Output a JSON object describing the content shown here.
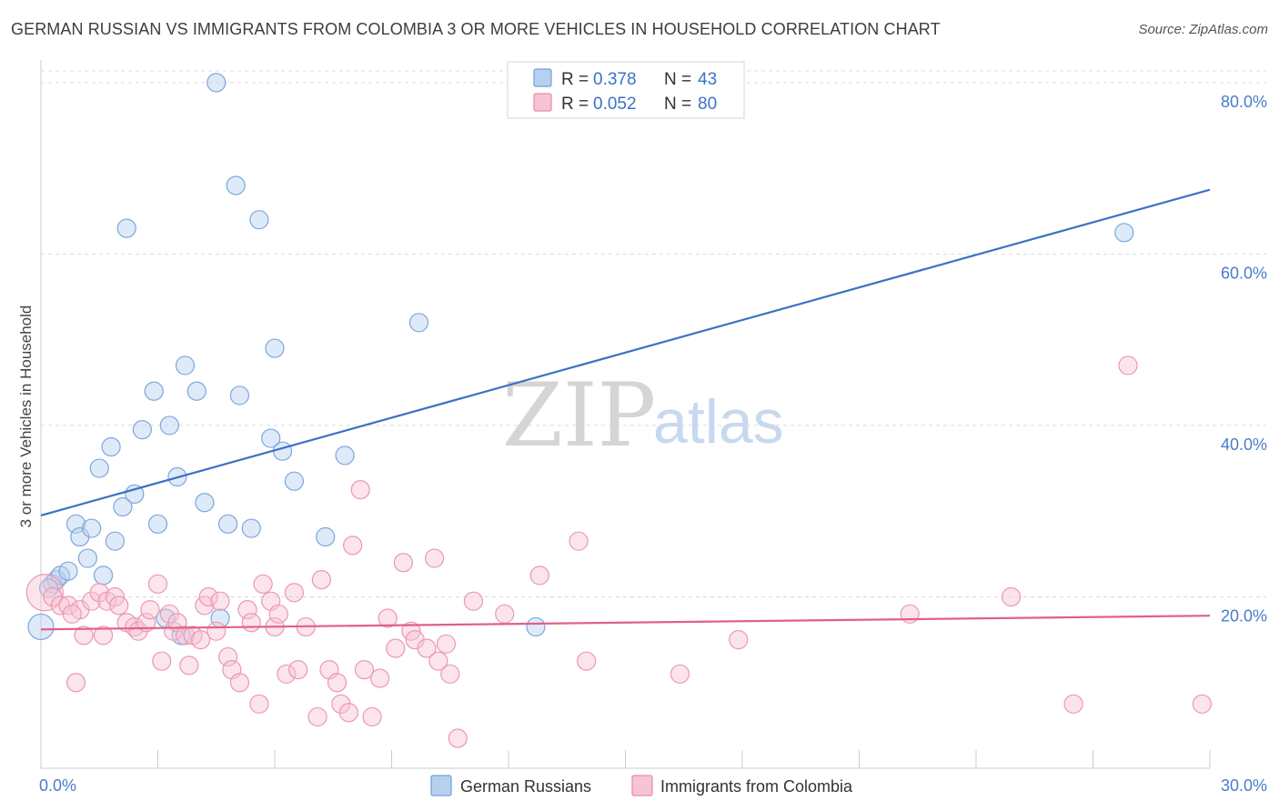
{
  "header": {
    "title": "GERMAN RUSSIAN VS IMMIGRANTS FROM COLOMBIA 3 OR MORE VEHICLES IN HOUSEHOLD CORRELATION CHART",
    "source": "Source: ZipAtlas.com"
  },
  "watermark": {
    "zip": "ZIP",
    "atlas": "atlas"
  },
  "colors": {
    "blue": "#6fa0dc",
    "blue_fill": "#b8d0f0",
    "blue_line": "#3a72c4",
    "pink": "#e88aa8",
    "pink_fill": "#f6c4d4",
    "pink_line": "#e0608a",
    "grid": "#d9d9d9",
    "axis_text": "#4a7cc9"
  },
  "legend": {
    "rows": [
      {
        "r_label": "R =",
        "r_value": "0.378",
        "n_label": "N =",
        "n_value": "43"
      },
      {
        "r_label": "R =",
        "r_value": "0.052",
        "n_label": "N =",
        "n_value": "80"
      }
    ]
  },
  "chart_data": {
    "type": "scatter",
    "title": "GERMAN RUSSIAN VS IMMIGRANTS FROM COLOMBIA 3 OR MORE VEHICLES IN HOUSEHOLD CORRELATION CHART",
    "xlabel": "",
    "ylabel": "3 or more Vehicles in Household",
    "xlim": [
      0,
      30
    ],
    "ylim": [
      0,
      82
    ],
    "x_tick_labels": [
      "0.0%",
      "30.0%"
    ],
    "y_ticks": [
      20,
      40,
      60,
      80
    ],
    "y_tick_labels": [
      "20.0%",
      "40.0%",
      "60.0%",
      "80.0%"
    ],
    "grid": true,
    "legend_position": "top-center",
    "series": [
      {
        "name": "German Russians",
        "color": "#6fa0dc",
        "trend": {
          "x0": 0,
          "y0": 29.5,
          "x1": 30,
          "y1": 67.5
        },
        "points": [
          [
            0.0,
            16.5,
            14
          ],
          [
            0.3,
            21.5,
            10
          ],
          [
            0.4,
            22.0,
            10
          ],
          [
            0.5,
            22.5,
            10
          ],
          [
            0.7,
            23.0,
            10
          ],
          [
            0.9,
            28.5,
            10
          ],
          [
            1.0,
            27.0,
            10
          ],
          [
            1.2,
            24.5,
            10
          ],
          [
            1.3,
            28.0,
            10
          ],
          [
            1.5,
            35.0,
            10
          ],
          [
            1.6,
            22.5,
            10
          ],
          [
            1.8,
            37.5,
            10
          ],
          [
            1.9,
            26.5,
            10
          ],
          [
            2.1,
            30.5,
            10
          ],
          [
            2.2,
            63.0,
            10
          ],
          [
            2.4,
            32.0,
            10
          ],
          [
            2.6,
            39.5,
            10
          ],
          [
            2.9,
            44.0,
            10
          ],
          [
            3.0,
            28.5,
            10
          ],
          [
            3.3,
            40.0,
            10
          ],
          [
            3.2,
            17.5,
            10
          ],
          [
            3.5,
            34.0,
            10
          ],
          [
            3.6,
            15.5,
            10
          ],
          [
            3.7,
            47.0,
            10
          ],
          [
            4.0,
            44.0,
            10
          ],
          [
            4.2,
            31.0,
            10
          ],
          [
            4.5,
            80.0,
            10
          ],
          [
            4.6,
            17.5,
            10
          ],
          [
            4.8,
            28.5,
            10
          ],
          [
            5.0,
            68.0,
            10
          ],
          [
            5.1,
            43.5,
            10
          ],
          [
            5.4,
            28.0,
            10
          ],
          [
            5.6,
            64.0,
            10
          ],
          [
            5.9,
            38.5,
            10
          ],
          [
            6.0,
            49.0,
            10
          ],
          [
            6.2,
            37.0,
            10
          ],
          [
            6.5,
            33.5,
            10
          ],
          [
            7.3,
            27.0,
            10
          ],
          [
            7.8,
            36.5,
            10
          ],
          [
            9.7,
            52.0,
            10
          ],
          [
            12.7,
            16.5,
            10
          ],
          [
            27.8,
            62.5,
            10
          ],
          [
            0.2,
            21.0,
            10
          ]
        ]
      },
      {
        "name": "Immigrants from Colombia",
        "color": "#e88aa8",
        "trend": {
          "x0": 0,
          "y0": 16.2,
          "x1": 30,
          "y1": 17.8
        },
        "points": [
          [
            0.1,
            20.5,
            20
          ],
          [
            0.3,
            20.0,
            10
          ],
          [
            0.5,
            19.0,
            10
          ],
          [
            0.7,
            19.0,
            10
          ],
          [
            0.9,
            10.0,
            10
          ],
          [
            1.0,
            18.5,
            10
          ],
          [
            1.1,
            15.5,
            10
          ],
          [
            1.3,
            19.5,
            10
          ],
          [
            1.5,
            20.5,
            10
          ],
          [
            1.6,
            15.5,
            10
          ],
          [
            1.7,
            19.5,
            10
          ],
          [
            1.9,
            20.0,
            10
          ],
          [
            2.0,
            19.0,
            10
          ],
          [
            2.2,
            17.0,
            10
          ],
          [
            2.4,
            16.5,
            10
          ],
          [
            2.5,
            16.0,
            10
          ],
          [
            2.7,
            17.0,
            10
          ],
          [
            2.8,
            18.5,
            10
          ],
          [
            3.0,
            21.5,
            10
          ],
          [
            3.1,
            12.5,
            10
          ],
          [
            3.3,
            18.0,
            10
          ],
          [
            3.4,
            16.0,
            10
          ],
          [
            3.5,
            17.0,
            10
          ],
          [
            3.7,
            15.5,
            10
          ],
          [
            3.8,
            12.0,
            10
          ],
          [
            3.9,
            15.5,
            10
          ],
          [
            4.1,
            15.0,
            10
          ],
          [
            4.2,
            19.0,
            10
          ],
          [
            4.3,
            20.0,
            10
          ],
          [
            4.5,
            16.0,
            10
          ],
          [
            4.6,
            19.5,
            10
          ],
          [
            4.8,
            13.0,
            10
          ],
          [
            4.9,
            11.5,
            10
          ],
          [
            5.1,
            10.0,
            10
          ],
          [
            5.3,
            18.5,
            10
          ],
          [
            5.4,
            17.0,
            10
          ],
          [
            5.6,
            7.5,
            10
          ],
          [
            5.7,
            21.5,
            10
          ],
          [
            5.9,
            19.5,
            10
          ],
          [
            6.0,
            16.5,
            10
          ],
          [
            6.1,
            18.0,
            10
          ],
          [
            6.3,
            11.0,
            10
          ],
          [
            6.5,
            20.5,
            10
          ],
          [
            6.6,
            11.5,
            10
          ],
          [
            6.8,
            16.5,
            10
          ],
          [
            7.1,
            6.0,
            10
          ],
          [
            7.2,
            22.0,
            10
          ],
          [
            7.4,
            11.5,
            10
          ],
          [
            7.6,
            10.0,
            10
          ],
          [
            7.7,
            7.5,
            10
          ],
          [
            7.9,
            6.5,
            10
          ],
          [
            8.0,
            26.0,
            10
          ],
          [
            8.2,
            32.5,
            10
          ],
          [
            8.3,
            11.5,
            10
          ],
          [
            8.5,
            6.0,
            10
          ],
          [
            8.7,
            10.5,
            10
          ],
          [
            8.9,
            17.5,
            10
          ],
          [
            9.1,
            14.0,
            10
          ],
          [
            9.3,
            24.0,
            10
          ],
          [
            9.5,
            16.0,
            10
          ],
          [
            9.6,
            15.0,
            10
          ],
          [
            9.9,
            14.0,
            10
          ],
          [
            10.1,
            24.5,
            10
          ],
          [
            10.2,
            12.5,
            10
          ],
          [
            10.4,
            14.5,
            10
          ],
          [
            10.5,
            11.0,
            10
          ],
          [
            10.7,
            3.5,
            10
          ],
          [
            11.1,
            19.5,
            10
          ],
          [
            11.9,
            18.0,
            10
          ],
          [
            12.8,
            22.5,
            10
          ],
          [
            13.8,
            26.5,
            10
          ],
          [
            14.0,
            12.5,
            10
          ],
          [
            16.4,
            11.0,
            10
          ],
          [
            17.9,
            15.0,
            10
          ],
          [
            22.3,
            18.0,
            10
          ],
          [
            24.9,
            20.0,
            10
          ],
          [
            26.5,
            7.5,
            10
          ],
          [
            27.9,
            47.0,
            10
          ],
          [
            29.8,
            7.5,
            10
          ],
          [
            0.8,
            18.0,
            10
          ]
        ]
      }
    ]
  },
  "bottom_legend": {
    "items": [
      {
        "label": "German Russians"
      },
      {
        "label": "Immigrants from Colombia"
      }
    ]
  }
}
